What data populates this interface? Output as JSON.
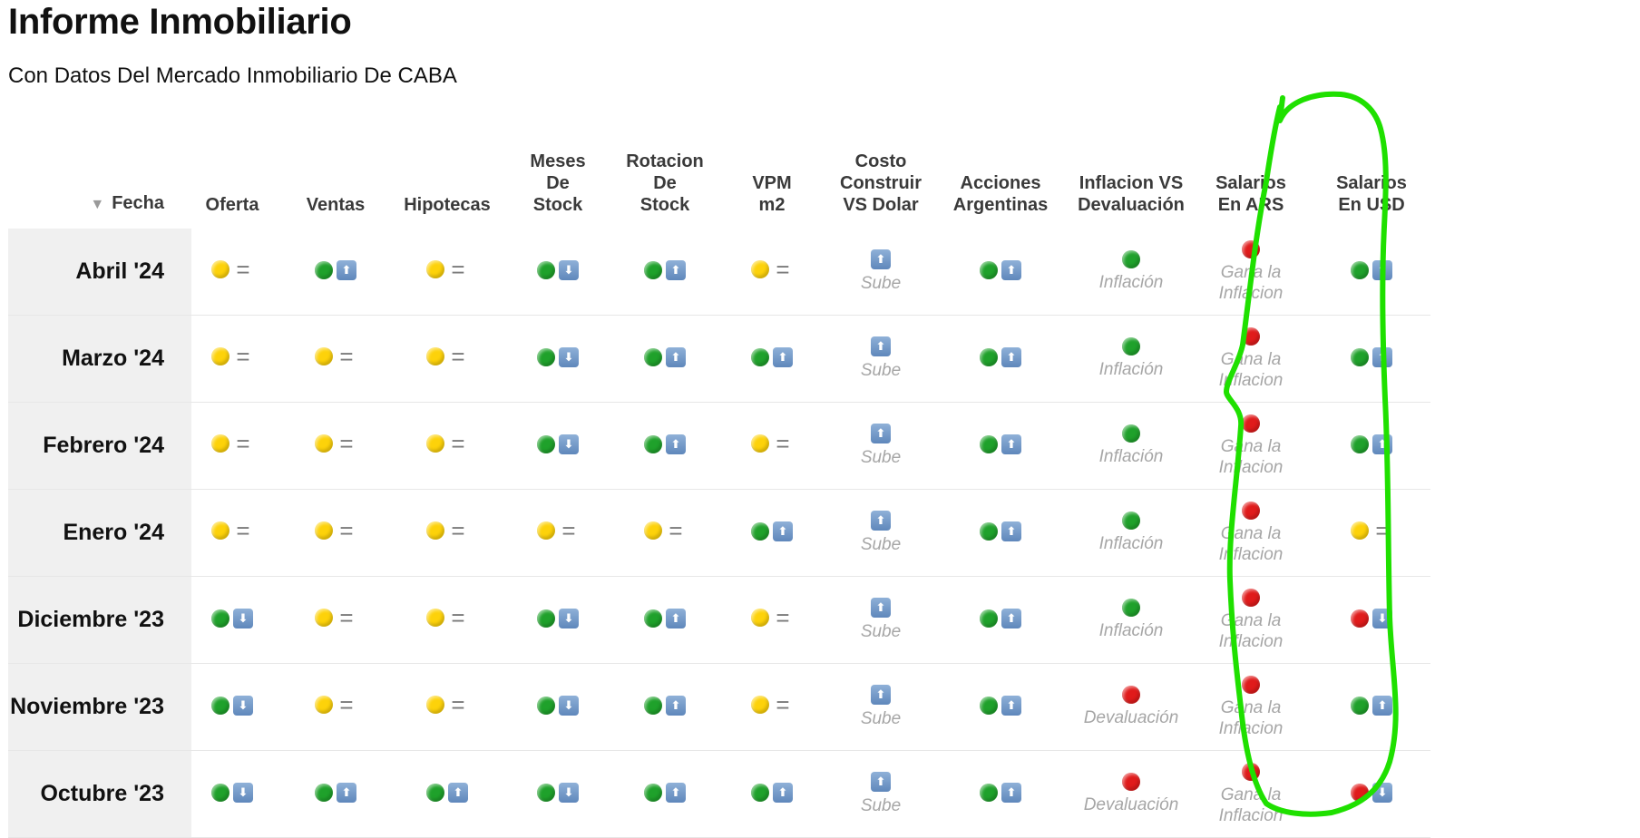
{
  "page": {
    "title": "Informe Inmobiliario",
    "subtitle": "Con Datos Del Mercado Inmobiliario De CABA"
  },
  "table": {
    "sort_indicator": "▼",
    "headers": [
      [
        "Fecha"
      ],
      [
        "Oferta"
      ],
      [
        "Ventas"
      ],
      [
        "Hipotecas"
      ],
      [
        "Meses",
        "De",
        "Stock"
      ],
      [
        "Rotacion",
        "De",
        "Stock"
      ],
      [
        "VPM",
        "m2"
      ],
      [
        "Costo",
        "Construir",
        "VS Dolar"
      ],
      [
        "Acciones",
        "Argentinas"
      ],
      [
        "Inflacion VS",
        "Devaluación"
      ],
      [
        "Salarios",
        "En ARS"
      ],
      [
        "Salarios",
        "En USD"
      ]
    ],
    "rows": [
      {
        "fecha": "Abril '24",
        "cells": [
          {
            "dot": "yellow",
            "sym": "eq"
          },
          {
            "dot": "green",
            "sym": "up"
          },
          {
            "dot": "yellow",
            "sym": "eq"
          },
          {
            "dot": "green",
            "sym": "down"
          },
          {
            "dot": "green",
            "sym": "up"
          },
          {
            "dot": "yellow",
            "sym": "eq"
          },
          {
            "sym": "up",
            "text": "Sube"
          },
          {
            "dot": "green",
            "sym": "up"
          },
          {
            "dot": "green",
            "text": "Inflación"
          },
          {
            "dot": "red",
            "text": "Gana la\nInflacion"
          },
          {
            "dot": "green",
            "sym": "up"
          }
        ]
      },
      {
        "fecha": "Marzo '24",
        "cells": [
          {
            "dot": "yellow",
            "sym": "eq"
          },
          {
            "dot": "yellow",
            "sym": "eq"
          },
          {
            "dot": "yellow",
            "sym": "eq"
          },
          {
            "dot": "green",
            "sym": "down"
          },
          {
            "dot": "green",
            "sym": "up"
          },
          {
            "dot": "green",
            "sym": "up"
          },
          {
            "sym": "up",
            "text": "Sube"
          },
          {
            "dot": "green",
            "sym": "up"
          },
          {
            "dot": "green",
            "text": "Inflación"
          },
          {
            "dot": "red",
            "text": "Gana la\nInflacion"
          },
          {
            "dot": "green",
            "sym": "up"
          }
        ]
      },
      {
        "fecha": "Febrero '24",
        "cells": [
          {
            "dot": "yellow",
            "sym": "eq"
          },
          {
            "dot": "yellow",
            "sym": "eq"
          },
          {
            "dot": "yellow",
            "sym": "eq"
          },
          {
            "dot": "green",
            "sym": "down"
          },
          {
            "dot": "green",
            "sym": "up"
          },
          {
            "dot": "yellow",
            "sym": "eq"
          },
          {
            "sym": "up",
            "text": "Sube"
          },
          {
            "dot": "green",
            "sym": "up"
          },
          {
            "dot": "green",
            "text": "Inflación"
          },
          {
            "dot": "red",
            "text": "Gana la\nInflacion"
          },
          {
            "dot": "green",
            "sym": "up"
          }
        ]
      },
      {
        "fecha": "Enero '24",
        "cells": [
          {
            "dot": "yellow",
            "sym": "eq"
          },
          {
            "dot": "yellow",
            "sym": "eq"
          },
          {
            "dot": "yellow",
            "sym": "eq"
          },
          {
            "dot": "yellow",
            "sym": "eq"
          },
          {
            "dot": "yellow",
            "sym": "eq"
          },
          {
            "dot": "green",
            "sym": "up"
          },
          {
            "sym": "up",
            "text": "Sube"
          },
          {
            "dot": "green",
            "sym": "up"
          },
          {
            "dot": "green",
            "text": "Inflación"
          },
          {
            "dot": "red",
            "text": "Gana la\nInflacion"
          },
          {
            "dot": "yellow",
            "sym": "eq"
          }
        ]
      },
      {
        "fecha": "Diciembre '23",
        "cells": [
          {
            "dot": "green",
            "sym": "down"
          },
          {
            "dot": "yellow",
            "sym": "eq"
          },
          {
            "dot": "yellow",
            "sym": "eq"
          },
          {
            "dot": "green",
            "sym": "down"
          },
          {
            "dot": "green",
            "sym": "up"
          },
          {
            "dot": "yellow",
            "sym": "eq"
          },
          {
            "sym": "up",
            "text": "Sube"
          },
          {
            "dot": "green",
            "sym": "up"
          },
          {
            "dot": "green",
            "text": "Inflación"
          },
          {
            "dot": "red",
            "text": "Gana la\nInflacion"
          },
          {
            "dot": "red",
            "sym": "down"
          }
        ]
      },
      {
        "fecha": "Noviembre '23",
        "cells": [
          {
            "dot": "green",
            "sym": "down"
          },
          {
            "dot": "yellow",
            "sym": "eq"
          },
          {
            "dot": "yellow",
            "sym": "eq"
          },
          {
            "dot": "green",
            "sym": "down"
          },
          {
            "dot": "green",
            "sym": "up"
          },
          {
            "dot": "yellow",
            "sym": "eq"
          },
          {
            "sym": "up",
            "text": "Sube"
          },
          {
            "dot": "green",
            "sym": "up"
          },
          {
            "dot": "red",
            "text": "Devaluación"
          },
          {
            "dot": "red",
            "text": "Gana la\nInflacion"
          },
          {
            "dot": "green",
            "sym": "up"
          }
        ]
      },
      {
        "fecha": "Octubre '23",
        "cells": [
          {
            "dot": "green",
            "sym": "down"
          },
          {
            "dot": "green",
            "sym": "up"
          },
          {
            "dot": "green",
            "sym": "up"
          },
          {
            "dot": "green",
            "sym": "down"
          },
          {
            "dot": "green",
            "sym": "up"
          },
          {
            "dot": "green",
            "sym": "up"
          },
          {
            "sym": "up",
            "text": "Sube"
          },
          {
            "dot": "green",
            "sym": "up"
          },
          {
            "dot": "red",
            "text": "Devaluación"
          },
          {
            "dot": "red",
            "text": "Gana la\nInflacion"
          },
          {
            "dot": "red",
            "sym": "down"
          }
        ]
      }
    ]
  },
  "annotation": {
    "shape": "hand-drawn-loop",
    "color": "#1fe000",
    "target_column": "Inflacion VS Devaluación"
  },
  "icons": {
    "up": "arrow-up-icon",
    "down": "arrow-down-icon",
    "eq": "equals-icon",
    "sort": "sort-descending-icon"
  }
}
